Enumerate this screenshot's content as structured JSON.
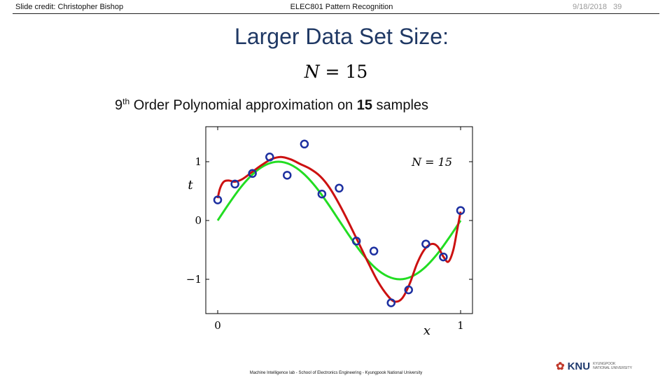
{
  "header": {
    "credit": "Slide credit: Christopher Bishop",
    "course": "ELEC801 Pattern Recognition",
    "date": "9/18/2018",
    "slide_number": "39"
  },
  "slide": {
    "title": "Larger Data Set Size:",
    "equation_var": "N",
    "equation_rest": " = 15",
    "subtitle_pre": "9",
    "subtitle_sup": "th",
    "subtitle_mid": " Order Polynomial approximation on ",
    "subtitle_bold": "15",
    "subtitle_post": " samples"
  },
  "footer": {
    "text": "Machine Intelligence lab - School of Electronics Engineering - Kyungpook National University"
  },
  "logo": {
    "mark": "✿",
    "text": "KNU",
    "sub1": "KYUNGPOOK",
    "sub2": "NATIONAL UNIVERSITY"
  },
  "chart_data": {
    "type": "scatter",
    "xlabel": "x",
    "ylabel": "t",
    "xlim": [
      0,
      1
    ],
    "ylim": [
      -1.6,
      1.6
    ],
    "xticks": [
      {
        "value": 0,
        "label": "0"
      },
      {
        "value": 1,
        "label": "1"
      }
    ],
    "yticks": [
      {
        "value": -1,
        "label": "−1"
      },
      {
        "value": 0,
        "label": "0"
      },
      {
        "value": 1,
        "label": "1"
      }
    ],
    "annotation": "N = 15",
    "colors": {
      "points": "#1c2fa0",
      "truth": "#22dd22",
      "fit": "#cc1111"
    },
    "points": [
      [
        0.0,
        0.35
      ],
      [
        0.071,
        0.62
      ],
      [
        0.143,
        0.8
      ],
      [
        0.214,
        1.08
      ],
      [
        0.286,
        0.77
      ],
      [
        0.357,
        1.3
      ],
      [
        0.429,
        0.45
      ],
      [
        0.5,
        0.55
      ],
      [
        0.571,
        -0.35
      ],
      [
        0.643,
        -0.52
      ],
      [
        0.714,
        -1.4
      ],
      [
        0.786,
        -1.18
      ],
      [
        0.857,
        -0.4
      ],
      [
        0.929,
        -0.62
      ],
      [
        1.0,
        0.17
      ]
    ],
    "truth_curve": [
      [
        0.0,
        0.0
      ],
      [
        0.05,
        0.31
      ],
      [
        0.1,
        0.59
      ],
      [
        0.15,
        0.81
      ],
      [
        0.2,
        0.95
      ],
      [
        0.25,
        1.0
      ],
      [
        0.3,
        0.95
      ],
      [
        0.35,
        0.81
      ],
      [
        0.4,
        0.59
      ],
      [
        0.45,
        0.31
      ],
      [
        0.5,
        0.0
      ],
      [
        0.55,
        -0.31
      ],
      [
        0.6,
        -0.59
      ],
      [
        0.65,
        -0.81
      ],
      [
        0.7,
        -0.95
      ],
      [
        0.75,
        -1.0
      ],
      [
        0.8,
        -0.95
      ],
      [
        0.85,
        -0.81
      ],
      [
        0.9,
        -0.59
      ],
      [
        0.95,
        -0.31
      ],
      [
        1.0,
        0.0
      ]
    ],
    "fit_curve": [
      [
        0.0,
        0.38
      ],
      [
        0.01,
        0.55
      ],
      [
        0.025,
        0.66
      ],
      [
        0.045,
        0.68
      ],
      [
        0.07,
        0.66
      ],
      [
        0.1,
        0.7
      ],
      [
        0.14,
        0.82
      ],
      [
        0.18,
        0.94
      ],
      [
        0.22,
        1.04
      ],
      [
        0.26,
        1.08
      ],
      [
        0.3,
        1.04
      ],
      [
        0.34,
        0.96
      ],
      [
        0.38,
        0.88
      ],
      [
        0.42,
        0.76
      ],
      [
        0.46,
        0.56
      ],
      [
        0.5,
        0.28
      ],
      [
        0.54,
        -0.04
      ],
      [
        0.58,
        -0.38
      ],
      [
        0.62,
        -0.72
      ],
      [
        0.66,
        -1.04
      ],
      [
        0.7,
        -1.28
      ],
      [
        0.73,
        -1.38
      ],
      [
        0.76,
        -1.32
      ],
      [
        0.79,
        -1.08
      ],
      [
        0.82,
        -0.74
      ],
      [
        0.85,
        -0.5
      ],
      [
        0.88,
        -0.4
      ],
      [
        0.905,
        -0.44
      ],
      [
        0.93,
        -0.62
      ],
      [
        0.95,
        -0.7
      ],
      [
        0.97,
        -0.5
      ],
      [
        0.985,
        -0.18
      ],
      [
        1.0,
        0.15
      ]
    ]
  }
}
